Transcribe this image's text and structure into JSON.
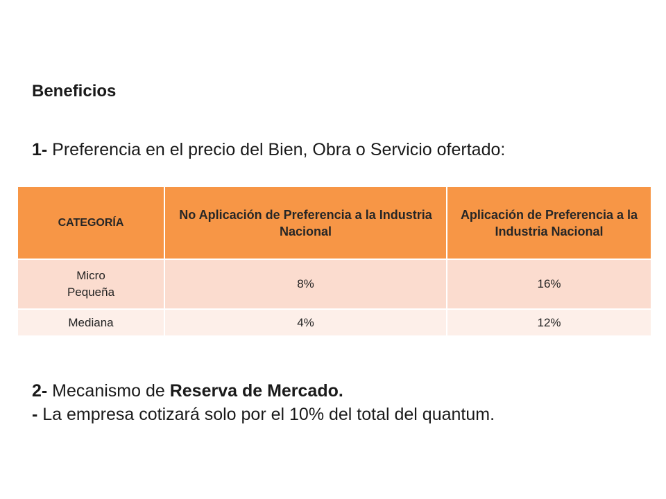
{
  "heading": "Beneficios",
  "point1": {
    "number": "1-",
    "text": " Preferencia en el precio del Bien, Obra o Servicio ofertado:"
  },
  "table": {
    "headers": [
      "CATEGORÍA",
      "No  Aplicación de Preferencia a la Industria Nacional",
      "Aplicación de Preferencia a la Industria Nacional"
    ],
    "rows": [
      {
        "categoria_lines": [
          "Micro",
          "Pequeña"
        ],
        "no_aplicacion": "8%",
        "aplicacion": "16%"
      },
      {
        "categoria_lines": [
          "Mediana"
        ],
        "no_aplicacion": "4%",
        "aplicacion": "12%"
      }
    ]
  },
  "point2": {
    "number": "2-",
    "text_before": " Mecanismo de ",
    "bold_text": "Reserva de Mercado."
  },
  "point3": {
    "dash": "-",
    "text": " La empresa cotizará solo por el 10% del total del quantum."
  },
  "colors": {
    "header_bg": "#f79646",
    "row_odd_bg": "#fbdccf",
    "row_even_bg": "#fdefe9"
  }
}
